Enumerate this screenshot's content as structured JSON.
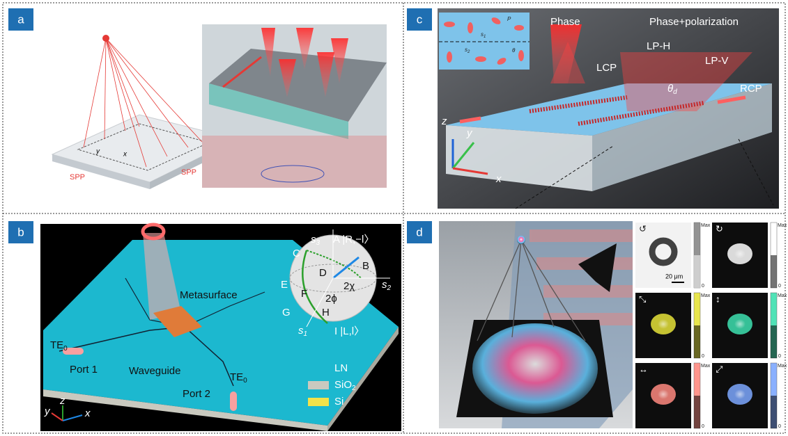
{
  "panels": {
    "a": {
      "label": "a",
      "spp_left": "SPP",
      "spp_right": "SPP",
      "axis_y": "y",
      "axis_x": "x"
    },
    "b": {
      "label": "b",
      "s3": {
        "text": "s",
        "sub": "3"
      },
      "state_a": "A |R,−l〉",
      "B": "B",
      "C": "C",
      "D": "D",
      "E": "E",
      "F": "F",
      "G": "G",
      "H": "H",
      "s1": {
        "text": "s",
        "sub": "1"
      },
      "state_i": "I |L,l〉",
      "s2": {
        "text": "s",
        "sub": "2"
      },
      "angle_chi": "2χ",
      "angle_phi": "2ϕ",
      "metasurface": "Metasurface",
      "te_port1": {
        "text": "TE",
        "sub": "0"
      },
      "port1": "Port 1",
      "waveguide": "Waveguide",
      "te_port2": {
        "text": "TE",
        "sub": "0"
      },
      "port2": "Port 2",
      "legend": [
        {
          "text": "LN",
          "color": "#1cb8cf"
        },
        {
          "text": "SiO",
          "sub": "2",
          "color": "#c9c9bf"
        },
        {
          "text": "Si",
          "color": "#f2e24a"
        }
      ],
      "axis_x": "x",
      "axis_y": "y",
      "axis_z": "z"
    },
    "c": {
      "label": "c",
      "phase": "Phase",
      "phase_pol": "Phase+polarization",
      "lcp": "LCP",
      "lph": "LP-H",
      "lpv": "LP-V",
      "rcp": "RCP",
      "theta_d": {
        "text": "θ",
        "sub": "d"
      },
      "inset_s1": {
        "text": "s",
        "sub": "1"
      },
      "inset_s2": {
        "text": "s",
        "sub": "2"
      },
      "inset_p": "P",
      "inset_theta": "θ",
      "axis_x": "x",
      "axis_y": "y",
      "axis_z": "z"
    },
    "d": {
      "label": "d",
      "scale_bar": "20 μm",
      "thumbnails": [
        {
          "icon": "↺",
          "max": "Max",
          "min": 0,
          "color": "#888888"
        },
        {
          "icon": "↻",
          "max": "Max",
          "min": 0,
          "color": "#ffffff"
        },
        {
          "icon": "⤡",
          "max": "Max",
          "min": 0,
          "color": "#e6e33a"
        },
        {
          "icon": "↕",
          "max": "Max",
          "min": 0,
          "color": "#3ee0b0"
        },
        {
          "icon": "↔",
          "max": "Max",
          "min": 0,
          "color": "#ff8a80"
        },
        {
          "icon": "⤢",
          "max": "Max",
          "min": 0,
          "color": "#7ea8ff"
        }
      ]
    }
  }
}
